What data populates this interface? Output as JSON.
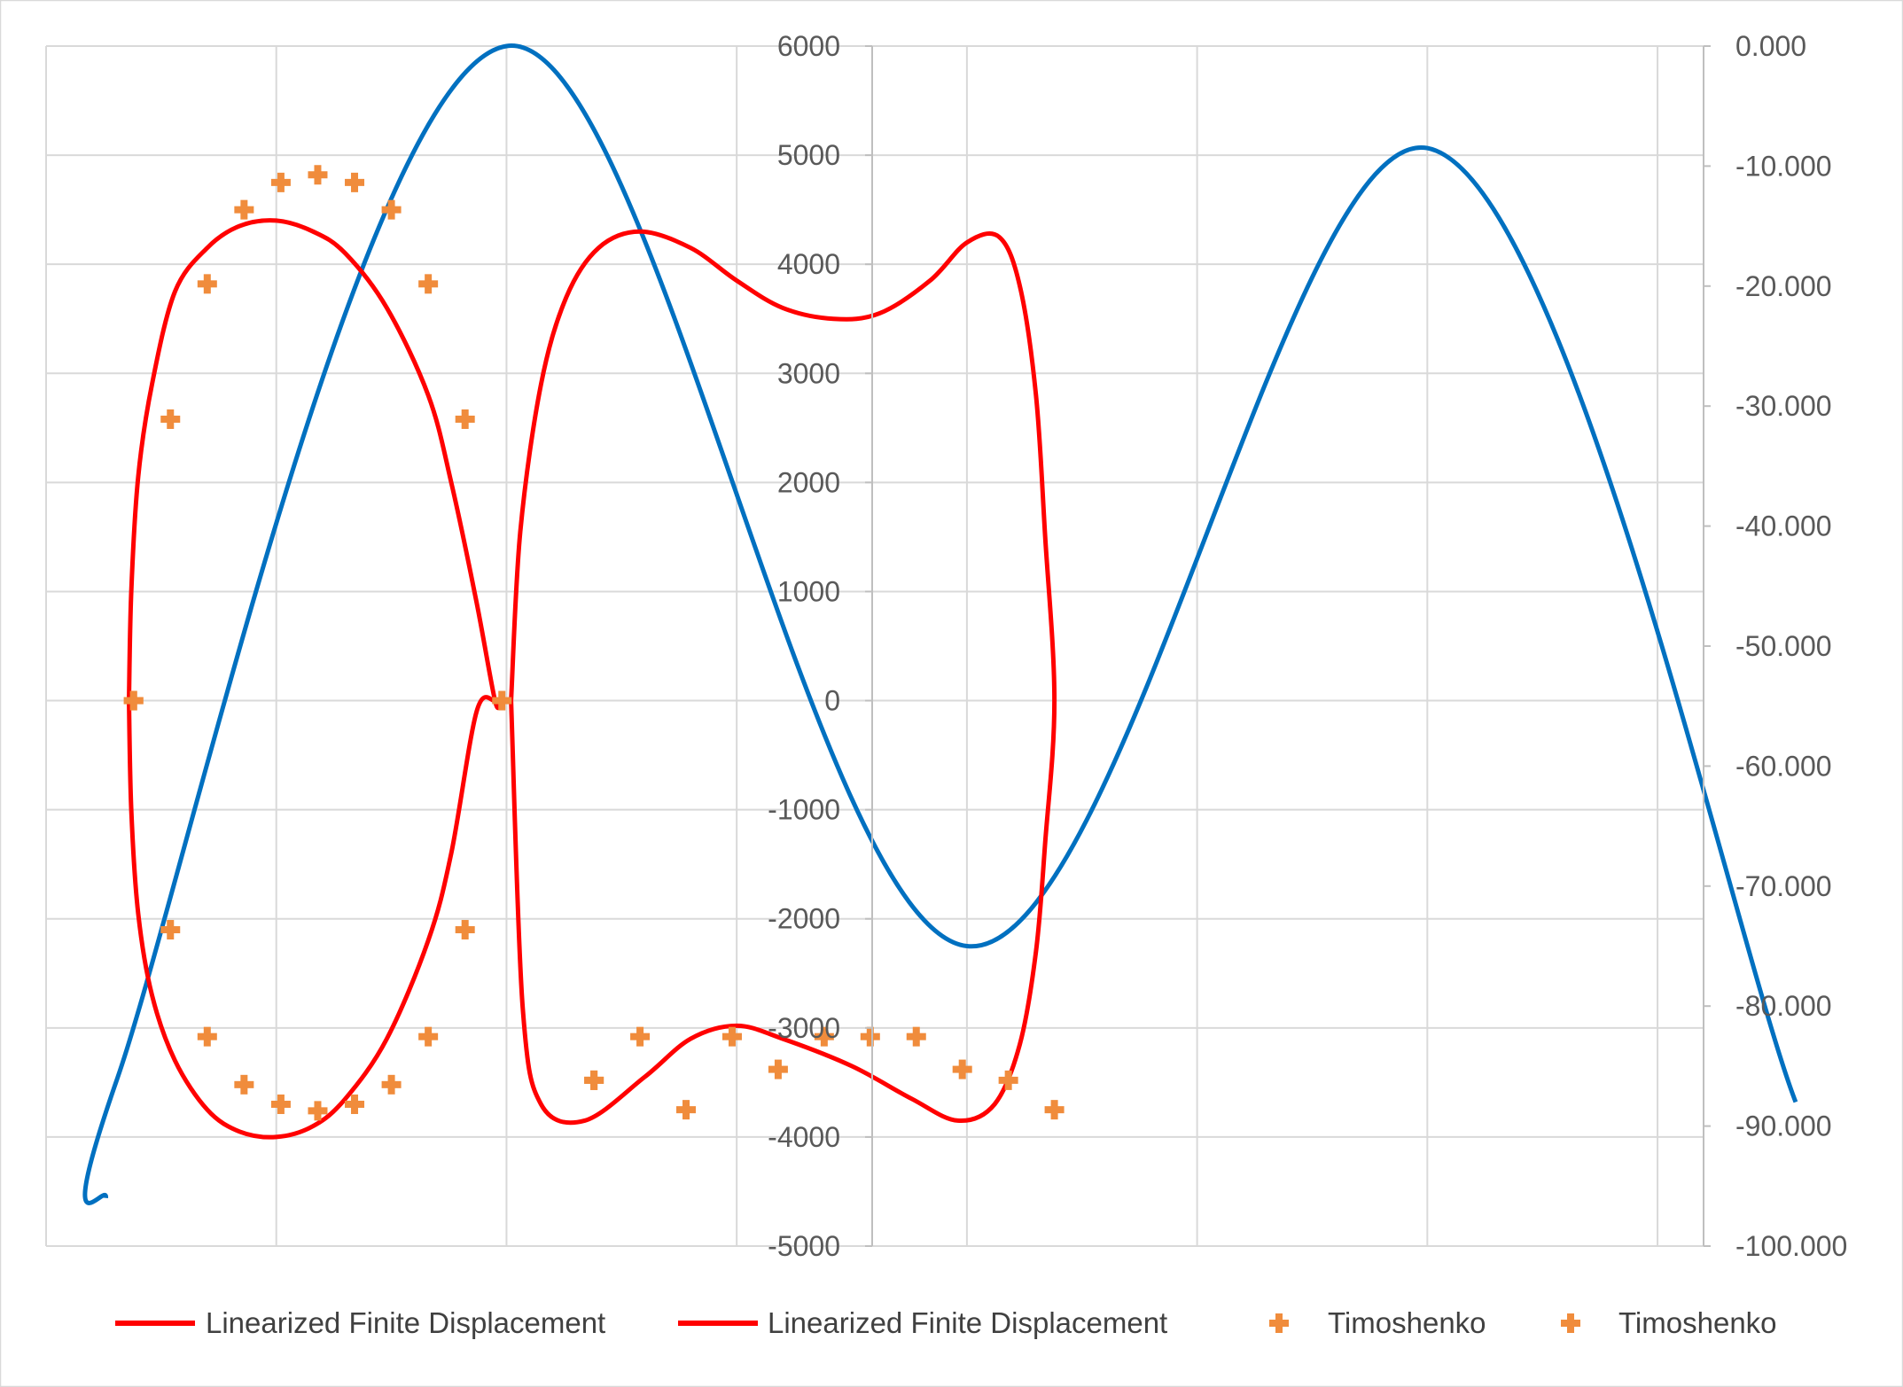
{
  "chart_data": {
    "type": "line",
    "title": "",
    "xlabel": "",
    "ylabel": "",
    "xlim": [
      0,
      36
    ],
    "ylim": [
      -5000,
      6000
    ],
    "y2lim": [
      -100,
      0
    ],
    "grid": true,
    "legend_position": "bottom",
    "y_ticks": [
      "6000",
      "5000",
      "4000",
      "3000",
      "2000",
      "1000",
      "0",
      "-1000",
      "-2000",
      "-3000",
      "-4000",
      "-5000"
    ],
    "y_tick_values": [
      6000,
      5000,
      4000,
      3000,
      2000,
      1000,
      0,
      -1000,
      -2000,
      -3000,
      -4000,
      -5000
    ],
    "y2_ticks": [
      "0.000",
      "-10.000",
      "-20.000",
      "-30.000",
      "-40.000",
      "-50.000",
      "-60.000",
      "-70.000",
      "-80.000",
      "-90.000",
      "-100.000"
    ],
    "y2_tick_values": [
      0,
      -10,
      -20,
      -30,
      -40,
      -50,
      -60,
      -70,
      -80,
      -90,
      -100
    ],
    "x_gridlines": [
      0,
      5,
      10,
      15,
      20,
      25,
      30,
      35
    ],
    "series": [
      {
        "name": "Linearized Finite Displacement",
        "axis": "y",
        "color": "#ff0000",
        "style": "line",
        "x": [
          1.8,
          1.85,
          2.0,
          2.3,
          2.8,
          3.5,
          4.2,
          5.0,
          5.8,
          6.5,
          7.4,
          8.3,
          8.8,
          9.35,
          9.75,
          9.85,
          9.75,
          9.35,
          8.8,
          8.3,
          7.4,
          6.5,
          5.8,
          5.0,
          4.2,
          3.5,
          2.8,
          2.3,
          2.0,
          1.85,
          1.8
        ],
        "y": [
          0,
          -1000,
          -1950,
          -2700,
          -3300,
          -3750,
          -3950,
          -4000,
          -3900,
          -3650,
          -3100,
          -2200,
          -1400,
          -100,
          0,
          0,
          0,
          900,
          2000,
          2800,
          3600,
          4100,
          4300,
          4400,
          4350,
          4150,
          3750,
          2900,
          2050,
          1000,
          0
        ]
      },
      {
        "name": "Linearized Finite Displacement",
        "axis": "y",
        "color": "#ff0000",
        "style": "line",
        "x": [
          10.1,
          10.3,
          10.75,
          11.3,
          12.0,
          12.9,
          14.0,
          15.0,
          16.0,
          17.1,
          18.1,
          19.2,
          20.0,
          20.7,
          21.15,
          21.5,
          21.7,
          21.9,
          21.7,
          21.5,
          21.15,
          20.6,
          19.8,
          18.8,
          17.5,
          16.0,
          15.0,
          14.0,
          13.0,
          11.7,
          10.75,
          10.35,
          10.1
        ],
        "y": [
          0,
          1550,
          2900,
          3700,
          4150,
          4300,
          4150,
          3850,
          3600,
          3500,
          3550,
          3850,
          4200,
          4250,
          3800,
          2800,
          1500,
          0,
          -1300,
          -2300,
          -3150,
          -3700,
          -3850,
          -3650,
          -3350,
          -3100,
          -2980,
          -3100,
          -3450,
          -3850,
          -3700,
          -2800,
          0
        ]
      },
      {
        "name": "Timoshenko",
        "axis": "y",
        "color": "#f08c3c",
        "style": "marker",
        "x": [
          1.9,
          2.7,
          3.5,
          4.3,
          5.1,
          5.9,
          6.7,
          7.5,
          8.3,
          9.1,
          9.9,
          9.1,
          8.3,
          7.5,
          6.7,
          5.9,
          5.1,
          4.3,
          3.5,
          2.7,
          1.9
        ],
        "y": [
          0,
          -2100,
          -3080,
          -3520,
          -3700,
          -3760,
          -3700,
          -3520,
          -3080,
          -2100,
          0,
          2580,
          3820,
          4500,
          4750,
          4820,
          4750,
          4500,
          3820,
          2580,
          0
        ]
      },
      {
        "name": "Timoshenko",
        "axis": "y",
        "color": "#f08c3c",
        "style": "marker",
        "x": [
          11.9,
          13.9,
          15.9,
          17.9,
          19.9,
          21.9,
          20.9,
          18.9,
          16.9,
          14.9,
          12.9,
          11.9
        ],
        "y": [
          -3480,
          -3750,
          -3380,
          -3080,
          -3380,
          -3750,
          -3480,
          -3080,
          -3080,
          -3080,
          -3080,
          -3480
        ]
      }
    ],
    "secondary_series": [
      {
        "axis": "y2",
        "color": "#0070c0",
        "x": [
          1.3,
          1.55,
          10.0,
          20.0,
          30.0,
          38.0
        ],
        "y": [
          -96,
          -86,
          0,
          -75,
          -8.5,
          -88
        ]
      }
    ],
    "legend": [
      {
        "label": "Linearized Finite Displacement",
        "marker": "line",
        "color": "#ff0000"
      },
      {
        "label": "Linearized Finite Displacement",
        "marker": "line",
        "color": "#ff0000"
      },
      {
        "label": "Timoshenko",
        "marker": "cross",
        "color": "#f08c3c"
      },
      {
        "label": "Timoshenko",
        "marker": "cross",
        "color": "#f08c3c"
      }
    ]
  }
}
